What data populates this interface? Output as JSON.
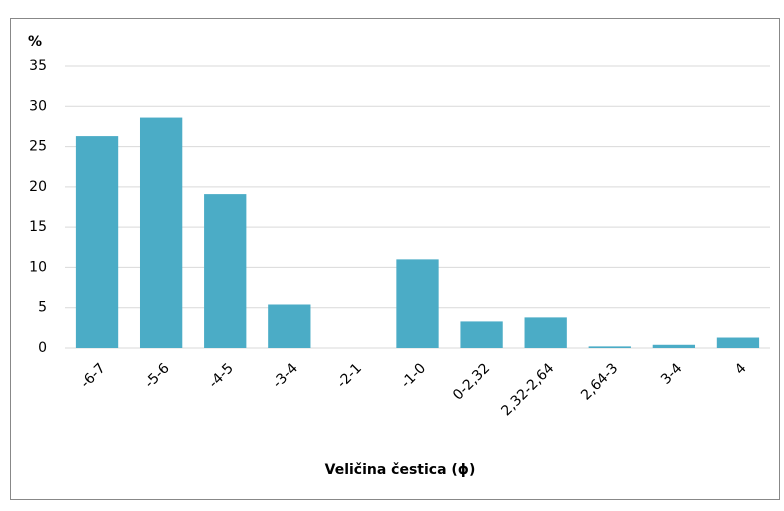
{
  "chart_data": {
    "type": "bar",
    "y_label": "%",
    "x_label": "Veličina čestica (ϕ)",
    "categories": [
      "-6-7",
      "-5-6",
      "-4-5",
      "-3-4",
      "-2-1",
      "-1-0",
      "0-2,32",
      "2,32-2,64",
      "2,64-3",
      "3-4",
      "4"
    ],
    "values": [
      26.3,
      28.6,
      19.1,
      5.4,
      0,
      11,
      3.3,
      3.8,
      0.2,
      0.4,
      1.3
    ],
    "color": "#4bacc6",
    "ylim": [
      0,
      35
    ],
    "yticks": [
      0,
      5,
      10,
      15,
      20,
      25,
      30,
      35
    ],
    "grid": true
  }
}
